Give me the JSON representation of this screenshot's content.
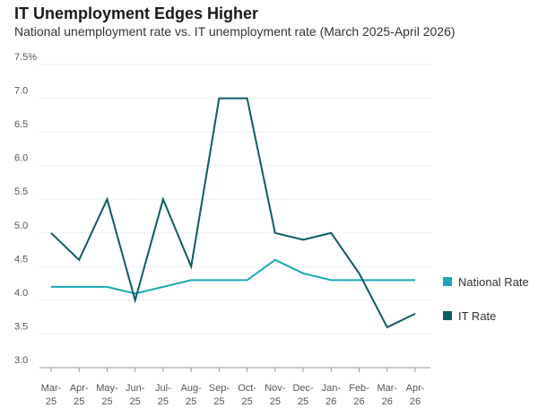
{
  "title": "IT Unemployment Edges Higher",
  "subtitle": "National unemployment rate vs. IT unemployment rate (March 2025-April 2026)",
  "chart_data": {
    "type": "line",
    "title": "IT Unemployment Edges Higher",
    "subtitle": "National unemployment rate vs. IT unemployment rate (March 2025-April 2026)",
    "xlabel": "",
    "ylabel": "",
    "categories": [
      [
        "Mar-",
        "25"
      ],
      [
        "Apr-",
        "25"
      ],
      [
        "May-",
        "25"
      ],
      [
        "Jun-",
        "25"
      ],
      [
        "Jul-",
        "25"
      ],
      [
        "Aug-",
        "25"
      ],
      [
        "Sep-",
        "25"
      ],
      [
        "Oct-",
        "25"
      ],
      [
        "Nov-",
        "25"
      ],
      [
        "Dec-",
        "25"
      ],
      [
        "Jan-",
        "26"
      ],
      [
        "Feb-",
        "26"
      ],
      [
        "Mar-",
        "26"
      ],
      [
        "Apr-",
        "26"
      ]
    ],
    "ylim": [
      3.0,
      7.5
    ],
    "yticks": [
      "3.0",
      "3.5",
      "4.0",
      "4.5",
      "5.0",
      "5.5",
      "6.0",
      "6.5",
      "7.0",
      "7.5%"
    ],
    "ytick_values": [
      3.0,
      3.5,
      4.0,
      4.5,
      5.0,
      5.5,
      6.0,
      6.5,
      7.0,
      7.5
    ],
    "grid": "horizontal-dotted",
    "legend_position": "right",
    "series": [
      {
        "name": "National Rate",
        "color": "#1ba7b8",
        "values": [
          4.2,
          4.2,
          4.2,
          4.1,
          4.2,
          4.3,
          4.3,
          4.3,
          4.6,
          4.4,
          4.3,
          4.3,
          4.3,
          4.3
        ]
      },
      {
        "name": "IT Rate",
        "color": "#0b5c63",
        "values": [
          5.0,
          4.6,
          5.5,
          4.0,
          5.5,
          4.5,
          7.0,
          7.0,
          5.0,
          4.9,
          5.0,
          4.4,
          3.6,
          3.8
        ]
      }
    ]
  }
}
